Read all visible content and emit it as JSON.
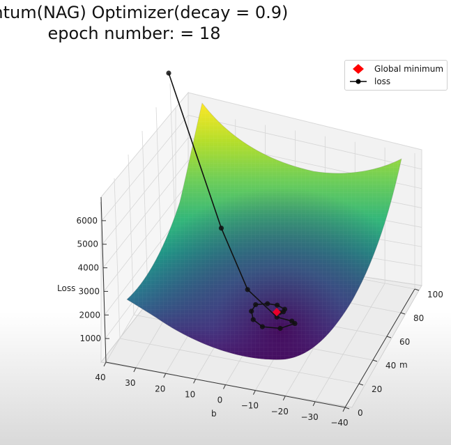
{
  "window": {
    "title_line1": "entum(NAG) Optimizer(decay = 0.9)",
    "title_line2": "epoch number: = 18"
  },
  "chart_data": {
    "type": "surface3d",
    "title": "entum(NAG) Optimizer(decay = 0.9)",
    "subtitle": "epoch number: = 18",
    "xlabel": "m",
    "ylabel": "b",
    "zlabel": "Loss",
    "x_ticks": [
      "0",
      "20",
      "40",
      "60",
      "80",
      "100"
    ],
    "y_ticks": [
      "40",
      "30",
      "20",
      "10",
      "0",
      "−10",
      "−20",
      "−30",
      "−40"
    ],
    "z_ticks": [
      "1000",
      "2000",
      "3000",
      "4000",
      "5000",
      "6000"
    ],
    "xlim": [
      0,
      100
    ],
    "ylim": [
      -40,
      40
    ],
    "zlim": [
      0,
      7000
    ],
    "colormap": "viridis",
    "legend": {
      "placement": "top-right",
      "entries": [
        {
          "label": "Global minimum",
          "marker": "diamond",
          "color": "#ff0000"
        },
        {
          "label": "loss",
          "marker": "circle-line",
          "color": "#000000"
        }
      ]
    },
    "global_minimum": {
      "m": 52,
      "b": -5
    },
    "series": [
      {
        "name": "loss",
        "points": [
          {
            "m": 100,
            "b": 40
          },
          {
            "m": 74,
            "b": 18
          },
          {
            "m": 58,
            "b": 6
          },
          {
            "m": 48,
            "b": -6
          },
          {
            "m": 44,
            "b": -12
          },
          {
            "m": 40,
            "b": -14
          },
          {
            "m": 36,
            "b": -10
          },
          {
            "m": 36,
            "b": -4
          },
          {
            "m": 40,
            "b": 0
          },
          {
            "m": 46,
            "b": 2
          },
          {
            "m": 52,
            "b": 2
          },
          {
            "m": 56,
            "b": -1
          },
          {
            "m": 57,
            "b": -4
          },
          {
            "m": 55,
            "b": -7
          },
          {
            "m": 53,
            "b": -7
          },
          {
            "m": 52,
            "b": -6
          },
          {
            "m": 52,
            "b": -5
          },
          {
            "m": 52,
            "b": -5
          }
        ]
      }
    ],
    "grid": true
  }
}
